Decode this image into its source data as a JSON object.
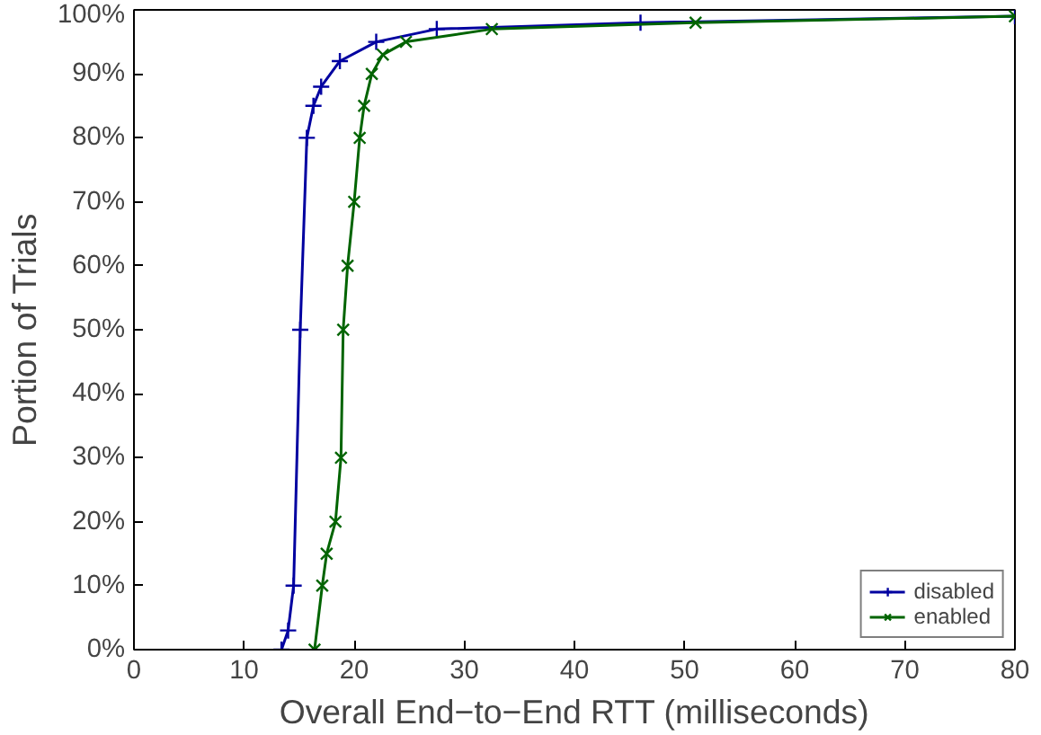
{
  "chart_data": {
    "type": "line",
    "xlabel": "Overall End−to−End RTT (milliseconds)",
    "ylabel": "Portion of Trials",
    "xlim": [
      0,
      80
    ],
    "xticks": [
      0,
      10,
      20,
      30,
      40,
      50,
      60,
      70,
      80
    ],
    "ylim": [
      0,
      100
    ],
    "yticks": [
      {
        "value": 0,
        "label": "0%"
      },
      {
        "value": 10,
        "label": "10%"
      },
      {
        "value": 20,
        "label": "20%"
      },
      {
        "value": 30,
        "label": "30%"
      },
      {
        "value": 40,
        "label": "40%"
      },
      {
        "value": 50,
        "label": "50%"
      },
      {
        "value": 60,
        "label": "60%"
      },
      {
        "value": 70,
        "label": "70%"
      },
      {
        "value": 80,
        "label": "80%"
      },
      {
        "value": 90,
        "label": "90%"
      },
      {
        "value": 100,
        "label": "100%"
      }
    ],
    "legend": "bottom right",
    "grid": false,
    "series": [
      {
        "name": "disabled",
        "color": "#0000a0",
        "marker": "cross",
        "x": [
          13.4,
          14.0,
          14.5,
          15.1,
          15.7,
          16.3,
          17.0,
          18.7,
          22.0,
          27.5,
          46.0,
          80.0
        ],
        "values": [
          0,
          3,
          10,
          50,
          80,
          85,
          88,
          92,
          95,
          97,
          98,
          99
        ]
      },
      {
        "name": "enabled",
        "color": "#006400",
        "marker": "x",
        "x": [
          16.4,
          17.1,
          17.5,
          18.3,
          18.8,
          19.0,
          19.4,
          20.0,
          20.5,
          20.9,
          21.6,
          22.6,
          24.7,
          32.5,
          51.0,
          80.0
        ],
        "values": [
          0,
          10,
          15,
          20,
          30,
          50,
          60,
          70,
          80,
          85,
          90,
          93,
          95,
          97,
          98,
          99
        ]
      }
    ]
  }
}
